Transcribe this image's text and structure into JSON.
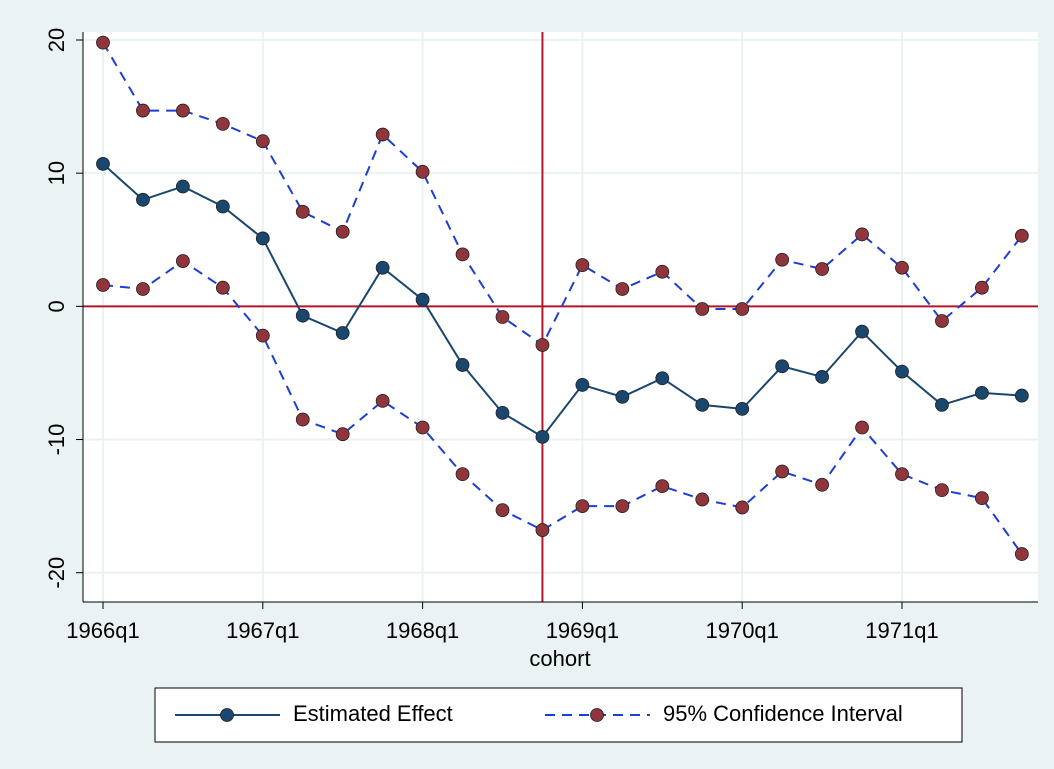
{
  "chart_data": {
    "type": "line",
    "x_label": "cohort",
    "categories": [
      "1966q1",
      null,
      null,
      null,
      "1967q1",
      null,
      null,
      null,
      "1968q1",
      null,
      null,
      null,
      "1969q1",
      null,
      null,
      null,
      "1970q1",
      null,
      null,
      null,
      "1971q1",
      null,
      null,
      null
    ],
    "series": [
      {
        "name": "Estimated Effect",
        "color": "#1a476f",
        "marker_color": "#1a476f",
        "dashed": false,
        "values": [
          10.7,
          8.0,
          9.0,
          7.5,
          5.1,
          -0.7,
          -2.0,
          2.9,
          0.5,
          -4.4,
          -8.0,
          -9.8,
          -5.9,
          -6.8,
          -5.4,
          -7.4,
          -7.7,
          -4.5,
          -5.3,
          -1.9,
          -4.9,
          -7.4,
          -6.5,
          -6.7
        ]
      },
      {
        "name": "95% Confidence Interval",
        "color": "#1c3ed6",
        "marker_color": "#90353b",
        "dashed": true,
        "upper": [
          19.8,
          14.7,
          14.7,
          13.7,
          12.4,
          7.1,
          5.6,
          12.9,
          10.1,
          3.9,
          -0.8,
          -2.9,
          3.1,
          1.3,
          2.6,
          -0.2,
          -0.2,
          3.5,
          2.8,
          5.4,
          2.9,
          -1.1,
          1.4,
          5.3
        ],
        "lower": [
          1.6,
          1.3,
          3.4,
          1.4,
          -2.2,
          -8.5,
          -9.6,
          -7.1,
          -9.1,
          -12.6,
          -15.3,
          -16.8,
          -15.0,
          -15.0,
          -13.5,
          -14.5,
          -15.1,
          -12.4,
          -13.4,
          -9.1,
          -12.6,
          -13.8,
          -14.4,
          -18.6
        ]
      }
    ],
    "ylim": [
      -22.2,
      20.6
    ],
    "yticks": [
      -20,
      -10,
      0,
      10,
      20
    ],
    "grid": true,
    "ref_line_color": "#b2182b",
    "yline": 0,
    "xline_index": 11
  }
}
